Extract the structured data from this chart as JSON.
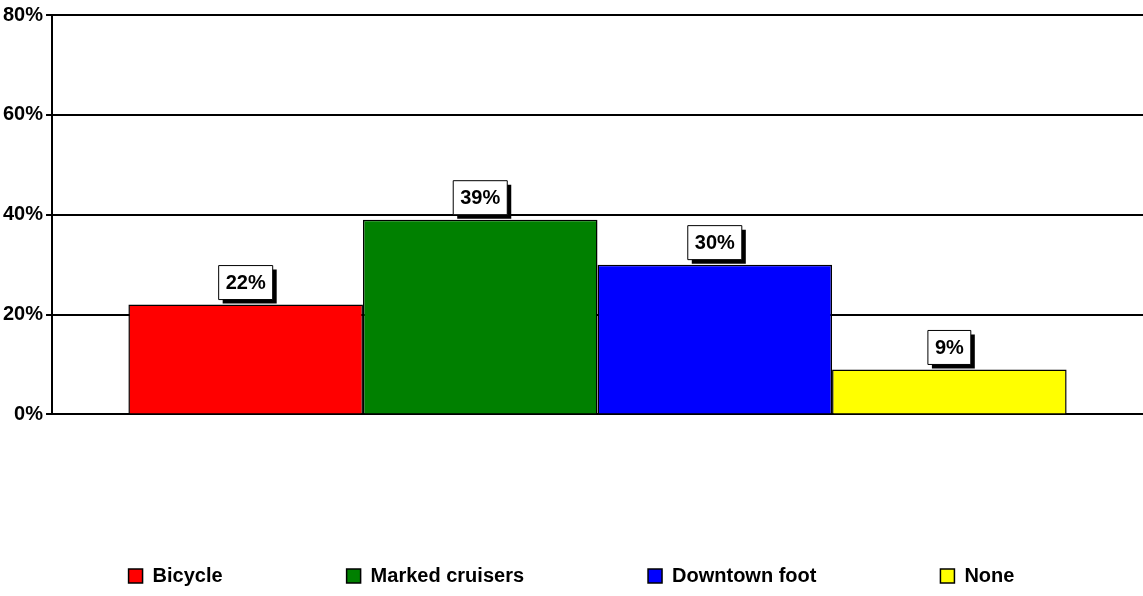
{
  "chart_data": {
    "type": "bar",
    "categories": [
      null
    ],
    "series": [
      {
        "name": "Bicycle",
        "color": "#ff0000",
        "values": [
          22
        ],
        "value_labels": [
          "22%"
        ]
      },
      {
        "name": "Marked cruisers",
        "color": "#008000",
        "values": [
          39
        ],
        "value_labels": [
          "39%"
        ]
      },
      {
        "name": "Downtown foot",
        "color": "#0000ff",
        "values": [
          30
        ],
        "value_labels": [
          "30%"
        ]
      },
      {
        "name": "None",
        "color": "#ffff00",
        "values": [
          9
        ],
        "value_labels": [
          "9%"
        ]
      }
    ],
    "ylim": [
      0,
      80
    ],
    "yticks": [
      {
        "value": 0,
        "label": "0%"
      },
      {
        "value": 20,
        "label": "20%"
      },
      {
        "value": 40,
        "label": "40%"
      },
      {
        "value": 60,
        "label": "60%"
      },
      {
        "value": 80,
        "label": "80%"
      }
    ],
    "grid": "y",
    "legend": "bottom"
  }
}
